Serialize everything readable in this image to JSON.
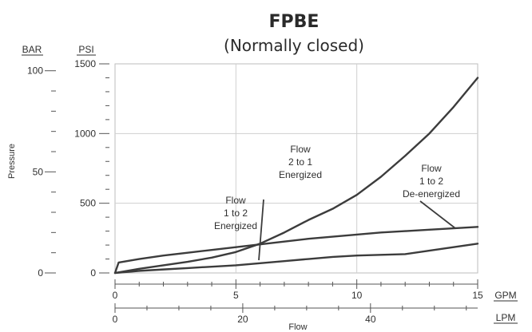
{
  "chart_data": {
    "type": "line",
    "title": "FPBE",
    "subtitle": "(Normally closed)",
    "ylabel": "Pressure",
    "xlabel": "Flow",
    "units": {
      "pressure_bar": "BAR",
      "pressure_psi": "PSI",
      "flow_gpm": "GPM",
      "flow_lpm": "LPM"
    },
    "x_primary": {
      "unit": "GPM",
      "range": [
        0,
        15
      ],
      "tick_labels": [
        "0",
        "5",
        "10",
        "15"
      ]
    },
    "x_secondary": {
      "unit": "LPM",
      "tick_labels": [
        "0",
        "20",
        "40"
      ]
    },
    "y_primary": {
      "unit": "PSI",
      "range": [
        0,
        1500
      ],
      "tick_labels": [
        "0",
        "500",
        "1000",
        "1500"
      ]
    },
    "y_secondary": {
      "unit": "BAR",
      "tick_labels": [
        "0",
        "50",
        "100"
      ]
    },
    "grid": true,
    "series": [
      {
        "name": "Flow 2 to 1 Energized",
        "label_lines": [
          "Flow",
          "2 to 1",
          "Energized"
        ],
        "points": [
          [
            0,
            0
          ],
          [
            1,
            30
          ],
          [
            2,
            55
          ],
          [
            3,
            80
          ],
          [
            4,
            110
          ],
          [
            5,
            150
          ],
          [
            6,
            210
          ],
          [
            7,
            290
          ],
          [
            8,
            380
          ],
          [
            9,
            460
          ],
          [
            10,
            560
          ],
          [
            11,
            690
          ],
          [
            12,
            840
          ],
          [
            13,
            1000
          ],
          [
            14,
            1190
          ],
          [
            15,
            1400
          ]
        ]
      },
      {
        "name": "Flow 1 to 2 De-energized",
        "label_lines": [
          "Flow",
          "1 to 2",
          "De-energized"
        ],
        "points": [
          [
            0,
            0
          ],
          [
            0.15,
            75
          ],
          [
            1,
            100
          ],
          [
            2,
            125
          ],
          [
            3,
            145
          ],
          [
            4,
            165
          ],
          [
            5,
            185
          ],
          [
            6,
            205
          ],
          [
            7,
            225
          ],
          [
            8,
            245
          ],
          [
            9,
            260
          ],
          [
            10,
            275
          ],
          [
            11,
            290
          ],
          [
            12,
            300
          ],
          [
            13,
            310
          ],
          [
            14,
            320
          ],
          [
            15,
            330
          ]
        ]
      },
      {
        "name": "Flow 1 to 2 Energized",
        "label_lines": [
          "Flow",
          "1 to 2",
          "Energized"
        ],
        "points": [
          [
            0,
            0
          ],
          [
            1,
            15
          ],
          [
            2,
            25
          ],
          [
            3,
            35
          ],
          [
            4,
            45
          ],
          [
            5,
            55
          ],
          [
            6,
            70
          ],
          [
            7,
            85
          ],
          [
            8,
            100
          ],
          [
            9,
            115
          ],
          [
            10,
            125
          ],
          [
            11,
            130
          ],
          [
            12,
            135
          ],
          [
            13,
            160
          ],
          [
            14,
            185
          ],
          [
            15,
            210
          ]
        ]
      }
    ]
  }
}
